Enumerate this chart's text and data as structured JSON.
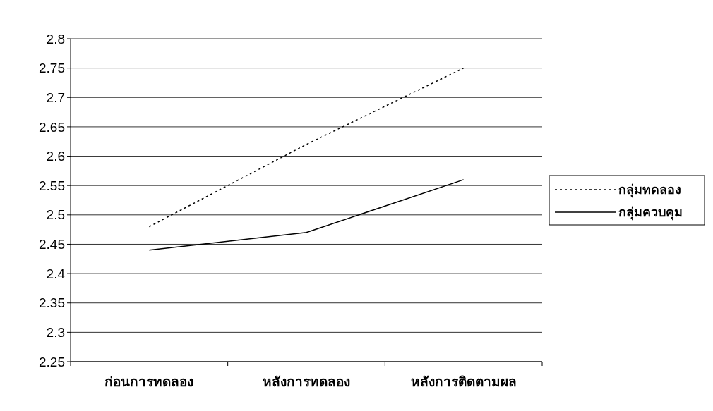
{
  "chart_data": {
    "type": "line",
    "categories": [
      "ก่อนการทดลอง",
      "หลังการทดลอง",
      "หลังการติดตามผล"
    ],
    "series": [
      {
        "name": "กลุ่มทดลอง",
        "color": "#000000",
        "values": [
          2.48,
          2.62,
          2.75
        ],
        "line_style": "dotted"
      },
      {
        "name": "กลุ่มควบคุม",
        "color": "#000000",
        "values": [
          2.44,
          2.47,
          2.56
        ],
        "line_style": "solid"
      }
    ],
    "ylim": [
      2.25,
      2.8
    ],
    "yticks": [
      2.25,
      2.3,
      2.35,
      2.4,
      2.45,
      2.5,
      2.55,
      2.6,
      2.65,
      2.7,
      2.75,
      2.8
    ],
    "grid": "y",
    "legend": "right"
  }
}
